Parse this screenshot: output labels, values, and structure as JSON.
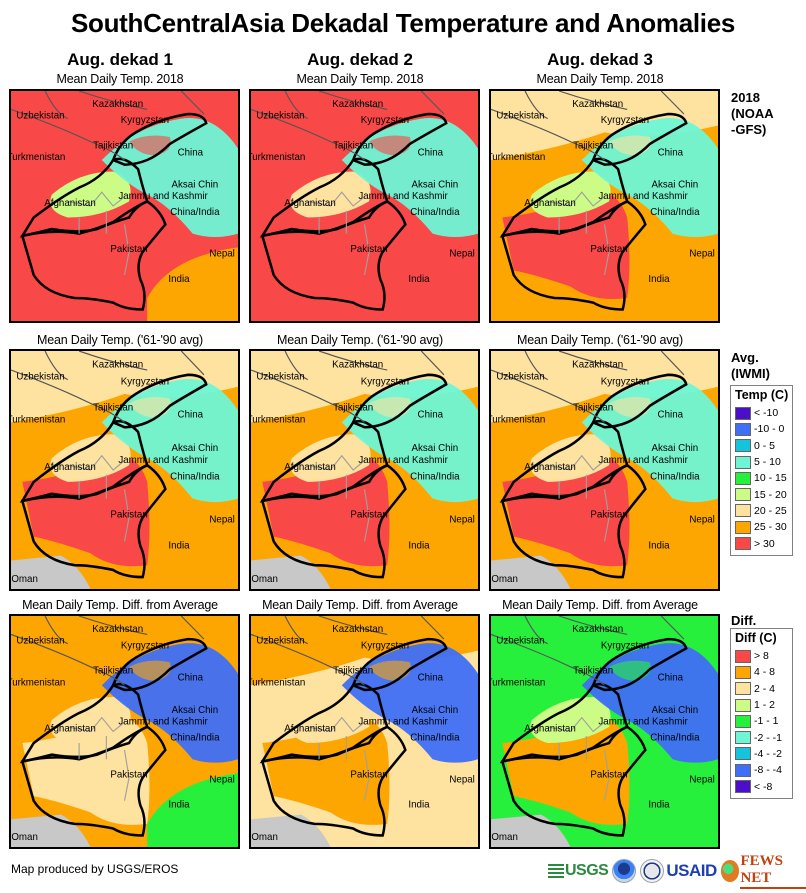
{
  "title": "SouthCentralAsia Dekadal Temperature and Anomalies",
  "columns": [
    "Aug. dekad 1",
    "Aug. dekad 2",
    "Aug. dekad 3"
  ],
  "rows": [
    {
      "key": "current",
      "subtitle": "Mean Daily Temp. 2018",
      "side_label": [
        "2018",
        "(NOAA",
        "-GFS)"
      ]
    },
    {
      "key": "average",
      "subtitle": "Mean Daily Temp. ('61-'90 avg)",
      "side_label": [
        "Avg.",
        "(IWMI)"
      ]
    },
    {
      "key": "difference",
      "subtitle": "Mean Daily Temp. Diff. from Average",
      "side_label": [
        "Diff."
      ]
    }
  ],
  "map_labels": [
    "Kazakhstan",
    "Uzbekistan",
    "Kyrgyzstan",
    "Tajikistan",
    "Turkmenistan",
    "China",
    "Aksai Chin",
    "Jammu and Kashmir",
    "Afghanistan",
    "China/India",
    "Pakistan",
    "Nepal",
    "India",
    "Oman"
  ],
  "legend_temp": {
    "title": "Temp (C)",
    "items": [
      {
        "label": "< -10",
        "color": "#4b0fc9"
      },
      {
        "label": "-10 - 0",
        "color": "#3f6ef7"
      },
      {
        "label": "0 - 5",
        "color": "#16c3dc"
      },
      {
        "label": "5 - 10",
        "color": "#6ff5d6"
      },
      {
        "label": "10 - 15",
        "color": "#27f03c"
      },
      {
        "label": "15 - 20",
        "color": "#cdfc86"
      },
      {
        "label": "20 - 25",
        "color": "#fde2a0"
      },
      {
        "label": "25 - 30",
        "color": "#fda602"
      },
      {
        "label": "> 30",
        "color": "#f94848"
      }
    ]
  },
  "legend_diff": {
    "title": "Diff (C)",
    "items": [
      {
        "label": "> 8",
        "color": "#f94848"
      },
      {
        "label": "4 - 8",
        "color": "#fda602"
      },
      {
        "label": "2 - 4",
        "color": "#fde2a0"
      },
      {
        "label": "1 - 2",
        "color": "#cdfc86"
      },
      {
        "label": "-1 - 1",
        "color": "#27f03c"
      },
      {
        "label": "-2 - -1",
        "color": "#6ff5d6"
      },
      {
        "label": "-4 - -2",
        "color": "#16c3dc"
      },
      {
        "label": "-8 - -4",
        "color": "#3f6ef7"
      },
      {
        "label": "< -8",
        "color": "#4b0fc9"
      }
    ]
  },
  "panels": {
    "current": [
      {
        "base": "#f94848",
        "north": "#f94848",
        "mountains": "#6ff5d6",
        "afghan": "#cdfc86",
        "south": "#f94848",
        "india": "#fda602"
      },
      {
        "base": "#f94848",
        "north": "#f94848",
        "mountains": "#6ff5d6",
        "afghan": "#fde2a0",
        "south": "#f94848",
        "india": "#f94848"
      },
      {
        "base": "#fda602",
        "north": "#fde2a0",
        "mountains": "#6ff5d6",
        "afghan": "#cdfc86",
        "south": "#f94848",
        "india": "#fda602"
      }
    ],
    "average": [
      {
        "base": "#fda602",
        "north": "#fde2a0",
        "mountains": "#6ff5d6",
        "afghan": "#fde2a0",
        "south": "#f94848",
        "india": "#fda602"
      },
      {
        "base": "#fda602",
        "north": "#fde2a0",
        "mountains": "#6ff5d6",
        "afghan": "#fde2a0",
        "south": "#f94848",
        "india": "#fda602"
      },
      {
        "base": "#fda602",
        "north": "#fde2a0",
        "mountains": "#6ff5d6",
        "afghan": "#fde2a0",
        "south": "#f94848",
        "india": "#fda602"
      }
    ],
    "difference": [
      {
        "base": "#fda602",
        "north": "#fda602",
        "mountains": "#3f6ef7",
        "afghan": "#fde2a0",
        "south": "#fde2a0",
        "india": "#27f03c"
      },
      {
        "base": "#fde2a0",
        "north": "#fda602",
        "mountains": "#3f6ef7",
        "afghan": "#fde2a0",
        "south": "#fda602",
        "india": "#fde2a0"
      },
      {
        "base": "#27f03c",
        "north": "#27f03c",
        "mountains": "#3f6ef7",
        "afghan": "#cdfc86",
        "south": "#fda602",
        "india": "#27f03c"
      }
    ]
  },
  "footer": {
    "credit": "Map produced by USGS/EROS",
    "logos": {
      "usgs": "USGS",
      "usaid": "USAID",
      "fews": "FEWS NET"
    }
  }
}
